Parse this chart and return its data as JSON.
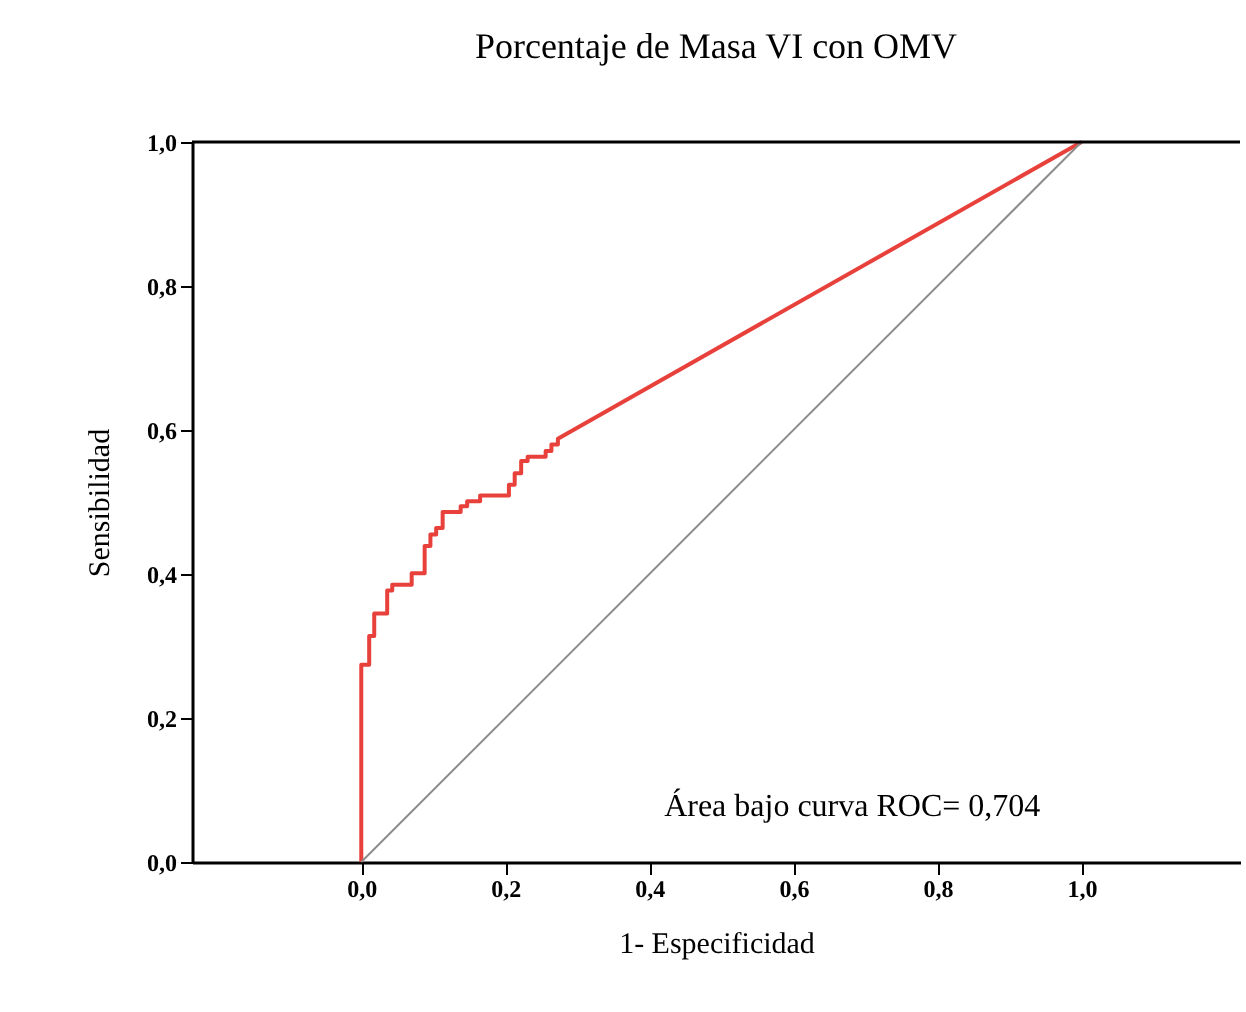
{
  "chart_data": {
    "type": "line",
    "title": "Porcentaje de Masa VI con OMV",
    "xlabel": "1- Especificidad",
    "ylabel": "Sensibilidad",
    "xlim": [
      -0.235,
      1.22
    ],
    "ylim": [
      0,
      1
    ],
    "xticks": [
      {
        "value": 0,
        "label": "0,0"
      },
      {
        "value": 0.2,
        "label": "0,2"
      },
      {
        "value": 0.4,
        "label": "0,4"
      },
      {
        "value": 0.6,
        "label": "0,6"
      },
      {
        "value": 0.8,
        "label": "0,8"
      },
      {
        "value": 1,
        "label": "1,0"
      }
    ],
    "yticks": [
      {
        "value": 0,
        "label": "0,0"
      },
      {
        "value": 0.2,
        "label": "0,2"
      },
      {
        "value": 0.4,
        "label": "0,4"
      },
      {
        "value": 0.6,
        "label": "0,6"
      },
      {
        "value": 0.8,
        "label": "0,8"
      },
      {
        "value": 1,
        "label": "1,0"
      }
    ],
    "grid": false,
    "marker": "none",
    "line_style": "solid",
    "series": [
      {
        "color": "#e8413c",
        "x": [
          0,
          0,
          0.011,
          0.011,
          0.018,
          0.018,
          0.036,
          0.036,
          0.043,
          0.043,
          0.07,
          0.07,
          0.088,
          0.088,
          0.096,
          0.096,
          0.104,
          0.104,
          0.113,
          0.113,
          0.138,
          0.138,
          0.147,
          0.147,
          0.165,
          0.165,
          0.205,
          0.205,
          0.213,
          0.213,
          0.222,
          0.222,
          0.231,
          0.231,
          0.256,
          0.256,
          0.264,
          0.264,
          0.273,
          0.273,
          1
        ],
        "values": [
          0,
          0.274,
          0.274,
          0.314,
          0.314,
          0.345,
          0.345,
          0.377,
          0.377,
          0.385,
          0.385,
          0.401,
          0.401,
          0.439,
          0.439,
          0.455,
          0.455,
          0.464,
          0.464,
          0.486,
          0.486,
          0.494,
          0.494,
          0.501,
          0.501,
          0.509,
          0.509,
          0.524,
          0.524,
          0.54,
          0.54,
          0.557,
          0.557,
          0.563,
          0.563,
          0.571,
          0.571,
          0.58,
          0.58,
          0.588,
          1
        ]
      },
      {
        "color": "#8c8c8c",
        "x": [
          0,
          1
        ],
        "values": [
          0,
          1
        ]
      }
    ],
    "annotations": [
      "Área bajo curva ROC= 0,704"
    ]
  }
}
